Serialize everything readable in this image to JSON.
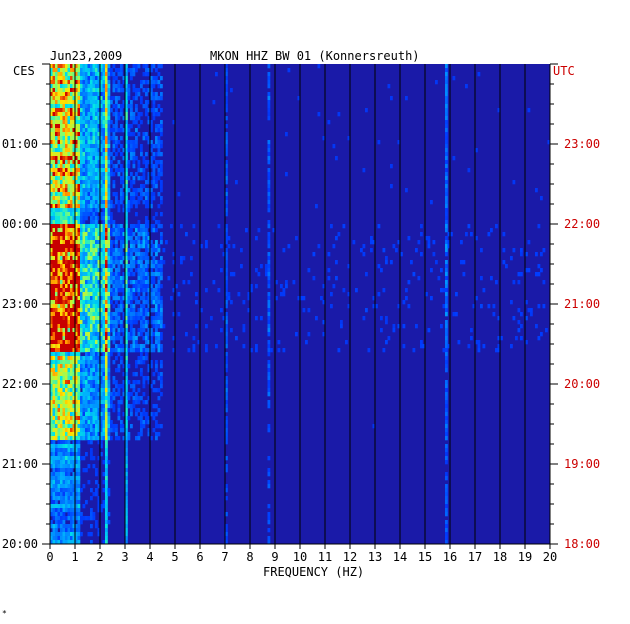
{
  "chart_data": {
    "type": "heatmap",
    "date": "Jun23,2009",
    "title": "MKON HHZ BW 01 (Konnersreuth)",
    "xlabel": "FREQUENCY (HZ)",
    "xlim": [
      0,
      20
    ],
    "x_ticks": [
      "0",
      "1",
      "2",
      "3",
      "4",
      "5",
      "6",
      "7",
      "8",
      "9",
      "10",
      "11",
      "12",
      "13",
      "14",
      "15",
      "16",
      "17",
      "18",
      "19",
      "20"
    ],
    "left_axis_label": "CES",
    "right_axis_label": "UTC",
    "left_time_ticks": [
      "01:00",
      "00:00",
      "23:00",
      "22:00",
      "21:00",
      "20:00"
    ],
    "right_time_ticks": [
      "23:00",
      "22:00",
      "21:00",
      "20:00",
      "19:00",
      "18:00"
    ],
    "colors": {
      "background": "#1a1aa8",
      "grid": "#000000",
      "utc_label": "#cc0000",
      "text": "#000000"
    },
    "footer_mark": "*"
  }
}
